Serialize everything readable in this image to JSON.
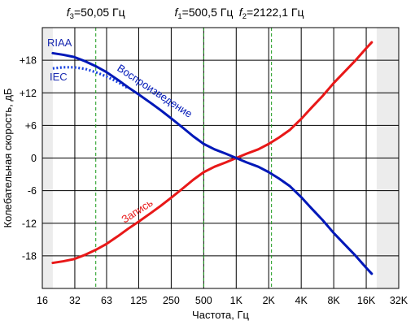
{
  "chart_data": {
    "type": "line",
    "x_scale": "log2",
    "xlim": [
      16,
      32000
    ],
    "ylim": [
      -24,
      24
    ],
    "shaded_regions": [
      {
        "from": 16,
        "to": 20
      },
      {
        "from": 20000,
        "to": 32000
      }
    ],
    "xlabel": "Частота, Гц",
    "ylabel": "Колебательная скорость, дБ",
    "x_ticks": [
      {
        "value": 16,
        "label": "16"
      },
      {
        "value": 32,
        "label": "32"
      },
      {
        "value": 63,
        "label": "63"
      },
      {
        "value": 125,
        "label": "125"
      },
      {
        "value": 250,
        "label": "250"
      },
      {
        "value": 500,
        "label": "500"
      },
      {
        "value": 1000,
        "label": "1K"
      },
      {
        "value": 2000,
        "label": "2K"
      },
      {
        "value": 4000,
        "label": "4K"
      },
      {
        "value": 8000,
        "label": "8K"
      },
      {
        "value": 16000,
        "label": "16K"
      },
      {
        "value": 32000,
        "label": "32K"
      }
    ],
    "y_ticks": [
      {
        "value": 18,
        "label": "+18"
      },
      {
        "value": 12,
        "label": "+12"
      },
      {
        "value": 6,
        "label": "+6"
      },
      {
        "value": 0,
        "label": "0"
      },
      {
        "value": -6,
        "label": "-6"
      },
      {
        "value": -12,
        "label": "-12"
      },
      {
        "value": -18,
        "label": "-18"
      }
    ],
    "markers": [
      {
        "x": 50.05,
        "sub": "3",
        "text": "=50,05 Гц"
      },
      {
        "x": 500.5,
        "sub": "1",
        "text": "=500,5 Гц"
      },
      {
        "x": 2122.1,
        "sub": "2",
        "text": "=2122,1 Гц"
      }
    ],
    "marker_symbol": "f",
    "series": [
      {
        "name": "Воспроизведение",
        "color": "#0018b8",
        "style": "solid",
        "x": [
          20,
          25,
          31.5,
          40,
          50,
          63,
          80,
          100,
          125,
          160,
          200,
          250,
          315,
          400,
          500,
          630,
          800,
          1000,
          1250,
          1600,
          2000,
          2500,
          3150,
          4000,
          5000,
          6300,
          8000,
          10000,
          12500,
          16000,
          18000
        ],
        "values": [
          19.3,
          19.0,
          18.6,
          17.8,
          16.9,
          15.8,
          14.4,
          13.0,
          11.7,
          10.2,
          8.8,
          7.3,
          5.7,
          4.0,
          2.6,
          1.6,
          0.8,
          0.0,
          -0.8,
          -1.6,
          -2.6,
          -3.8,
          -5.2,
          -7.2,
          -9.3,
          -11.4,
          -13.8,
          -15.8,
          -17.8,
          -20.2,
          -21.3
        ]
      },
      {
        "name": "IEC",
        "color": "#1a44e0",
        "style": "dotted",
        "x": [
          20,
          25,
          31.5,
          40,
          50,
          63,
          80,
          100
        ],
        "values": [
          16.5,
          16.7,
          16.7,
          16.4,
          15.8,
          15.0,
          14.0,
          12.8
        ]
      },
      {
        "name": "Запись",
        "color": "#e81818",
        "style": "solid",
        "x": [
          20,
          25,
          31.5,
          40,
          50,
          63,
          80,
          100,
          125,
          160,
          200,
          250,
          315,
          400,
          500,
          630,
          800,
          1000,
          1250,
          1600,
          2000,
          2500,
          3150,
          4000,
          5000,
          6300,
          8000,
          10000,
          12500,
          16000,
          18000
        ],
        "values": [
          -19.3,
          -19.0,
          -18.6,
          -17.8,
          -16.9,
          -15.8,
          -14.4,
          -13.0,
          -11.7,
          -10.2,
          -8.8,
          -7.3,
          -5.7,
          -4.0,
          -2.6,
          -1.6,
          -0.8,
          0.0,
          0.8,
          1.6,
          2.6,
          3.8,
          5.2,
          7.2,
          9.3,
          11.4,
          13.8,
          15.8,
          17.8,
          20.2,
          21.3
        ]
      }
    ],
    "series_labels": {
      "riaa": "RIAA",
      "iec": "IEC",
      "playback": "Воспроизведение",
      "record": "Запись"
    },
    "colors": {
      "grid": "#000000",
      "marker": "#1a9a1a",
      "shade": "#ececec",
      "riaa_label": "#1a2ab0",
      "record_label": "#e81818"
    }
  }
}
